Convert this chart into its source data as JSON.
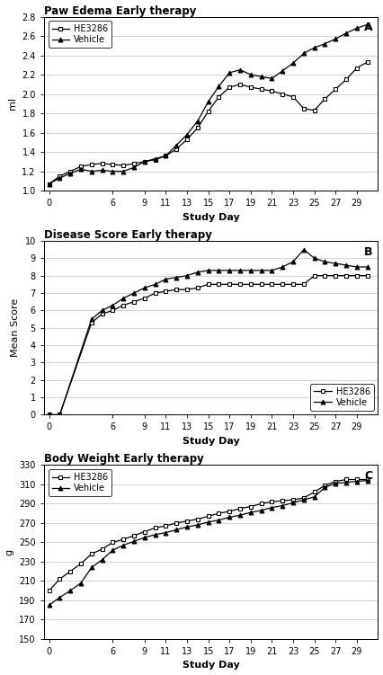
{
  "panel_A": {
    "title": "Paw Edema Early therapy",
    "label": "A",
    "xlabel": "Study Day",
    "ylabel": "ml",
    "ylim": [
      1.0,
      2.8
    ],
    "yticks": [
      1.0,
      1.2,
      1.4,
      1.6,
      1.8,
      2.0,
      2.2,
      2.4,
      2.6,
      2.8
    ],
    "xticks": [
      0,
      6,
      9,
      11,
      13,
      15,
      17,
      19,
      21,
      23,
      25,
      27,
      29
    ],
    "xticklabels": [
      "0",
      "6",
      "9",
      "11",
      "13",
      "15",
      "17",
      "19",
      "21",
      "23",
      "25",
      "27",
      "29"
    ],
    "xlim": [
      -0.5,
      31
    ],
    "HE3286_x": [
      0,
      1,
      2,
      3,
      4,
      5,
      6,
      7,
      8,
      9,
      10,
      11,
      12,
      13,
      14,
      15,
      16,
      17,
      18,
      19,
      20,
      21,
      22,
      23,
      24,
      25,
      26,
      27,
      28,
      29,
      30
    ],
    "HE3286_y": [
      1.07,
      1.15,
      1.2,
      1.25,
      1.27,
      1.28,
      1.27,
      1.26,
      1.28,
      1.3,
      1.32,
      1.36,
      1.43,
      1.53,
      1.65,
      1.82,
      1.97,
      2.07,
      2.1,
      2.07,
      2.05,
      2.03,
      2.0,
      1.97,
      1.85,
      1.83,
      1.95,
      2.05,
      2.15,
      2.27,
      2.33
    ],
    "Vehicle_x": [
      0,
      1,
      2,
      3,
      4,
      5,
      6,
      7,
      8,
      9,
      10,
      11,
      12,
      13,
      14,
      15,
      16,
      17,
      18,
      19,
      20,
      21,
      22,
      23,
      24,
      25,
      26,
      27,
      28,
      29,
      30
    ],
    "Vehicle_y": [
      1.07,
      1.13,
      1.18,
      1.22,
      1.2,
      1.21,
      1.2,
      1.2,
      1.24,
      1.3,
      1.33,
      1.36,
      1.47,
      1.58,
      1.72,
      1.92,
      2.08,
      2.22,
      2.25,
      2.2,
      2.18,
      2.16,
      2.24,
      2.32,
      2.42,
      2.48,
      2.52,
      2.57,
      2.63,
      2.68,
      2.72
    ],
    "legend_loc": "upper left"
  },
  "panel_B": {
    "title": "Disease Score Early therapy",
    "label": "B",
    "xlabel": "Study Day",
    "ylabel": "Mean Score",
    "ylim": [
      0,
      10
    ],
    "yticks": [
      0,
      1,
      2,
      3,
      4,
      5,
      6,
      7,
      8,
      9,
      10
    ],
    "xticks": [
      0,
      6,
      9,
      11,
      13,
      15,
      17,
      19,
      21,
      23,
      25,
      27,
      29
    ],
    "xticklabels": [
      "0",
      "6",
      "9",
      "11",
      "13",
      "15",
      "17",
      "19",
      "21",
      "23",
      "25",
      "27",
      "29"
    ],
    "xlim": [
      -0.5,
      31
    ],
    "HE3286_x": [
      0,
      1,
      4,
      5,
      6,
      7,
      8,
      9,
      10,
      11,
      12,
      13,
      14,
      15,
      16,
      17,
      18,
      19,
      20,
      21,
      22,
      23,
      24,
      25,
      26,
      27,
      28,
      29,
      30
    ],
    "HE3286_y": [
      0.0,
      0.0,
      5.3,
      5.8,
      6.0,
      6.3,
      6.5,
      6.7,
      7.0,
      7.1,
      7.2,
      7.2,
      7.3,
      7.5,
      7.5,
      7.5,
      7.5,
      7.5,
      7.5,
      7.5,
      7.5,
      7.5,
      7.5,
      8.0,
      8.0,
      8.0,
      8.0,
      8.0,
      8.0
    ],
    "Vehicle_x": [
      0,
      1,
      4,
      5,
      6,
      7,
      8,
      9,
      10,
      11,
      12,
      13,
      14,
      15,
      16,
      17,
      18,
      19,
      20,
      21,
      22,
      23,
      24,
      25,
      26,
      27,
      28,
      29,
      30
    ],
    "Vehicle_y": [
      0.0,
      0.0,
      5.5,
      6.0,
      6.3,
      6.7,
      7.0,
      7.3,
      7.5,
      7.8,
      7.9,
      8.0,
      8.2,
      8.3,
      8.3,
      8.3,
      8.3,
      8.3,
      8.3,
      8.3,
      8.5,
      8.8,
      9.5,
      9.0,
      8.8,
      8.7,
      8.6,
      8.5,
      8.5
    ],
    "legend_loc": "lower right"
  },
  "panel_C": {
    "title": "Body Weight Early therapy",
    "label": "C",
    "xlabel": "Study Day",
    "ylabel": "g",
    "ylim": [
      150,
      330
    ],
    "yticks": [
      150,
      170,
      190,
      210,
      230,
      250,
      270,
      290,
      310,
      330
    ],
    "xticks": [
      0,
      6,
      9,
      11,
      13,
      15,
      17,
      19,
      21,
      23,
      25,
      27,
      29
    ],
    "xticklabels": [
      "0",
      "6",
      "9",
      "11",
      "13",
      "15",
      "17",
      "19",
      "21",
      "23",
      "25",
      "27",
      "29"
    ],
    "xlim": [
      -0.5,
      31
    ],
    "HE3286_x": [
      0,
      1,
      2,
      3,
      4,
      5,
      6,
      7,
      8,
      9,
      10,
      11,
      12,
      13,
      14,
      15,
      16,
      17,
      18,
      19,
      20,
      21,
      22,
      23,
      24,
      25,
      26,
      27,
      28,
      29,
      30
    ],
    "HE3286_y": [
      200,
      212,
      220,
      228,
      238,
      243,
      250,
      253,
      257,
      261,
      265,
      267,
      270,
      272,
      274,
      277,
      280,
      282,
      285,
      287,
      290,
      292,
      293,
      294,
      296,
      302,
      309,
      313,
      315,
      315,
      315
    ],
    "Vehicle_x": [
      0,
      1,
      2,
      3,
      4,
      5,
      6,
      7,
      8,
      9,
      10,
      11,
      12,
      13,
      14,
      15,
      16,
      17,
      18,
      19,
      20,
      21,
      22,
      23,
      24,
      25,
      26,
      27,
      28,
      29,
      30
    ],
    "Vehicle_y": [
      185,
      193,
      200,
      208,
      224,
      232,
      242,
      247,
      251,
      255,
      258,
      260,
      263,
      266,
      268,
      271,
      273,
      276,
      278,
      281,
      283,
      286,
      288,
      291,
      294,
      297,
      307,
      311,
      312,
      313,
      314
    ],
    "legend_loc": "upper left"
  },
  "line_color_HE3286": "#000000",
  "line_color_Vehicle": "#000000",
  "marker_HE3286": "s",
  "marker_Vehicle": "^",
  "marker_size": 3.5,
  "background_color": "#ffffff",
  "grid_color": "#c0c0c0"
}
